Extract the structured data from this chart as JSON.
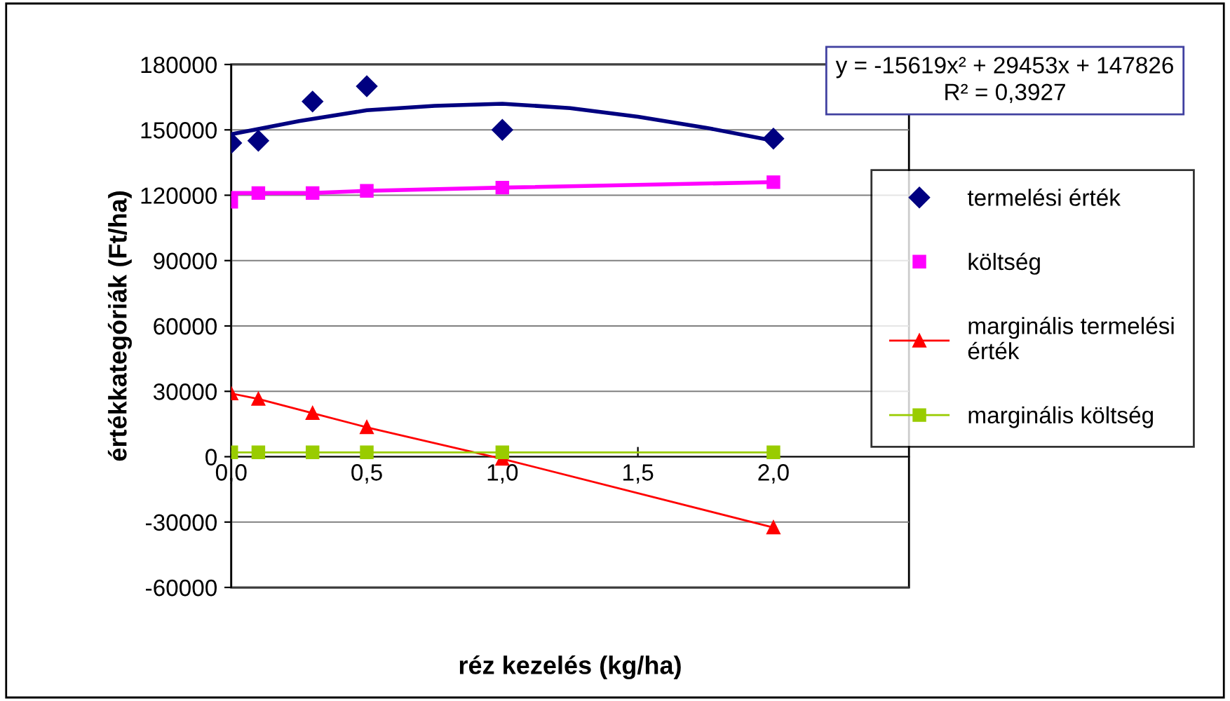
{
  "chart_data": {
    "type": "line",
    "xlabel": "réz kezelés (kg/ha)",
    "ylabel": "értékkategóriák (Ft/ha)",
    "x": [
      0,
      0.1,
      0.3,
      0.5,
      1.0,
      2.0
    ],
    "series": [
      {
        "name": "termelési érték",
        "type": "scatter",
        "marker": "diamond",
        "color": "#000080",
        "values": [
          144000,
          145000,
          163000,
          170000,
          150000,
          146000
        ]
      },
      {
        "name": "költség",
        "type": "scatter",
        "marker": "square",
        "color": "#ff00ff",
        "values": [
          117000,
          121000,
          121000,
          122000,
          123500,
          126000
        ]
      },
      {
        "name": "marginális termelési érték",
        "marker": "triangle",
        "color": "#ff0000",
        "values": [
          29000,
          26500,
          20000,
          13500,
          -1000,
          -32500
        ]
      },
      {
        "name": "marginális költség",
        "marker": "square",
        "color": "#99cc00",
        "values": [
          2000,
          2000,
          2000,
          2000,
          2000,
          2000
        ]
      },
      {
        "marker": "none",
        "color": "#000080",
        "x": [
          0,
          0.25,
          0.5,
          0.75,
          1.0,
          1.25,
          1.5,
          1.75,
          2.0
        ],
        "values": [
          148000,
          154000,
          159000,
          161000,
          162000,
          160000,
          156000,
          151000,
          145000
        ]
      },
      {
        "marker": "none",
        "color": "#ff00ff",
        "x": [
          0,
          0.3,
          0.5,
          1.0,
          2.0
        ],
        "values": [
          121000,
          121000,
          122000,
          123500,
          126000
        ]
      }
    ],
    "xlim": [
      0,
      2.5
    ],
    "xticks": [
      {
        "value": 0,
        "label": "0,0"
      },
      {
        "value": 0.5,
        "label": "0,5"
      },
      {
        "value": 1.0,
        "label": "1,0"
      },
      {
        "value": 1.5,
        "label": "1,5"
      },
      {
        "value": 2.0,
        "label": "2,0"
      }
    ],
    "ylim": [
      -60000,
      180000
    ],
    "yticks": [
      -60000,
      -30000,
      0,
      30000,
      60000,
      90000,
      120000,
      150000,
      180000
    ],
    "grid": "y",
    "legend": "right",
    "annotations": [
      "y = -15619x² + 29453x + 147826\nR² = 0,3927"
    ]
  }
}
